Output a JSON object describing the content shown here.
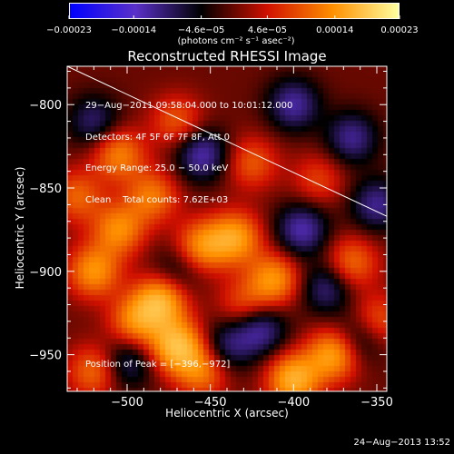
{
  "chart_data": {
    "type": "heatmap",
    "title": "Reconstructed RHESSI Image",
    "xlabel": "Heliocentric X (arcsec)",
    "ylabel": "Heliocentric Y (arcsec)",
    "x_ticks": [
      -500,
      -450,
      -400,
      -350
    ],
    "x_tick_labels": [
      "−500",
      "−450",
      "−400",
      "−350"
    ],
    "y_ticks": [
      -800,
      -850,
      -900,
      -950
    ],
    "y_tick_labels": [
      "−800",
      "−850",
      "−900",
      "−950"
    ],
    "xlim": [
      -536,
      -344
    ],
    "ylim": [
      -972,
      -777
    ],
    "colorbar": {
      "range": [
        -0.00023,
        0.00023
      ],
      "ticks": [
        -0.00023,
        -0.00014,
        -4.6e-05,
        4.6e-05,
        0.00014,
        0.00023
      ],
      "tick_labels": [
        "−0.00023",
        "−0.00014",
        "−4.6e−05",
        "4.6e−05",
        "0.00014",
        "0.00023"
      ],
      "label": "(photons cm⁻² s⁻¹ asec⁻²)",
      "colors": [
        "#0000ff",
        "#5a30c8",
        "#000000",
        "#d01000",
        "#ff9000",
        "#ffffa0"
      ]
    },
    "info_lines": [
      "29−Aug−2011 09:58:04.000 to 10:01:12.000",
      "Detectors: 4F 5F 6F 7F 8F, Att 0",
      "Energy Range: 25.0 − 50.0 keV",
      "Clean    Total counts: 7.62E+03"
    ],
    "peak_label": "Position of Peak = [−396,−972]",
    "peak": [
      -396,
      -972
    ],
    "limb_line": [
      [
        -536,
        -777
      ],
      [
        -344,
        -867
      ]
    ],
    "sources": [
      {
        "x": -470,
        "y": -945,
        "value": 0.00022
      },
      {
        "x": -480,
        "y": -918,
        "value": 0.0002
      },
      {
        "x": -412,
        "y": -905,
        "value": 0.00016
      },
      {
        "x": -376,
        "y": -950,
        "value": 0.00018
      },
      {
        "x": -455,
        "y": -885,
        "value": 0.00015
      },
      {
        "x": -435,
        "y": -880,
        "value": 0.00017
      },
      {
        "x": -505,
        "y": -830,
        "value": 0.00014
      },
      {
        "x": -520,
        "y": -900,
        "value": 0.00016
      },
      {
        "x": -495,
        "y": -930,
        "value": 0.00014
      },
      {
        "x": -400,
        "y": -965,
        "value": 0.0002
      },
      {
        "x": -365,
        "y": -895,
        "value": 0.00012
      },
      {
        "x": -350,
        "y": -930,
        "value": 0.00011
      },
      {
        "x": -485,
        "y": -855,
        "value": 0.00013
      },
      {
        "x": -425,
        "y": -835,
        "value": 0.0001
      },
      {
        "x": -520,
        "y": -960,
        "value": 0.00012
      },
      {
        "x": -530,
        "y": -855,
        "value": 0.00011
      },
      {
        "x": -470,
        "y": -810,
        "value": 0.0001
      },
      {
        "x": -430,
        "y": -920,
        "value": 9e-05
      },
      {
        "x": -385,
        "y": -845,
        "value": 8e-05
      },
      {
        "x": -455,
        "y": -960,
        "value": 0.00013
      },
      {
        "x": -505,
        "y": -875,
        "value": 0.00015
      },
      {
        "x": -440,
        "y": -945,
        "value": -0.0001
      },
      {
        "x": -455,
        "y": -830,
        "value": -0.00014
      },
      {
        "x": -400,
        "y": -800,
        "value": -0.00013
      },
      {
        "x": -365,
        "y": -820,
        "value": -0.00012
      },
      {
        "x": -395,
        "y": -875,
        "value": -0.00014
      },
      {
        "x": -360,
        "y": -940,
        "value": -0.0001
      },
      {
        "x": -420,
        "y": -935,
        "value": -0.00013
      },
      {
        "x": -520,
        "y": -810,
        "value": -0.0001
      },
      {
        "x": -500,
        "y": -955,
        "value": -0.0001
      },
      {
        "x": -470,
        "y": -900,
        "value": -7e-05
      },
      {
        "x": -380,
        "y": -910,
        "value": -0.00011
      },
      {
        "x": -350,
        "y": -860,
        "value": -0.00012
      }
    ]
  },
  "timestamp": "24−Aug−2013 13:52"
}
